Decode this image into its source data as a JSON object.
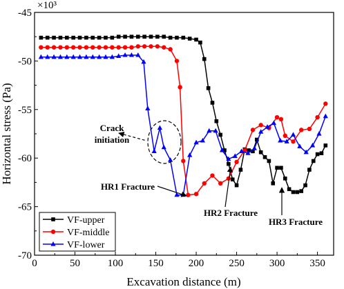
{
  "chart_data": {
    "type": "line",
    "title": "",
    "xlabel": "Excavation distance (m)",
    "ylabel": "Horizontal stress (Pa)",
    "y_multiplier_label": "×10³",
    "xlim": [
      0,
      370
    ],
    "ylim": [
      -70,
      -45
    ],
    "x_ticks": [
      0,
      50,
      100,
      150,
      200,
      250,
      300,
      350
    ],
    "y_ticks": [
      -45,
      -50,
      -55,
      -60,
      -65,
      -70
    ],
    "grid": false,
    "legend_placement": "bottom-left",
    "series": [
      {
        "name": "VF-upper",
        "color": "#000000",
        "marker": "square",
        "x": [
          8,
          16,
          24,
          32,
          40,
          48,
          56,
          64,
          72,
          80,
          88,
          96,
          104,
          112,
          120,
          128,
          136,
          144,
          152,
          160,
          168,
          176,
          184,
          192,
          200,
          205,
          210,
          215,
          220,
          225,
          230,
          235,
          240,
          245,
          250,
          255,
          260,
          265,
          270,
          275,
          280,
          285,
          290,
          295,
          300,
          305,
          310,
          315,
          320,
          325,
          330,
          335,
          340,
          345,
          350,
          355,
          360
        ],
        "values": [
          -47.6,
          -47.6,
          -47.6,
          -47.6,
          -47.6,
          -47.6,
          -47.6,
          -47.6,
          -47.6,
          -47.6,
          -47.6,
          -47.6,
          -47.5,
          -47.5,
          -47.5,
          -47.5,
          -47.5,
          -47.5,
          -47.5,
          -47.5,
          -47.6,
          -47.6,
          -47.6,
          -47.7,
          -47.8,
          -48.1,
          -49.8,
          -52.8,
          -54.3,
          -56.2,
          -57.6,
          -59.2,
          -60.6,
          -62.2,
          -62.8,
          -61.2,
          -59.1,
          -59.2,
          -59.3,
          -58.1,
          -59.4,
          -59.9,
          -60.3,
          -62.6,
          -61.0,
          -61.0,
          -62.1,
          -63.2,
          -63.5,
          -63.5,
          -63.4,
          -62.8,
          -61.2,
          -60.3,
          -59.6,
          -59.5,
          -58.7
        ]
      },
      {
        "name": "VF-middle",
        "color": "#ff0000",
        "marker": "circle",
        "x": [
          8,
          16,
          24,
          32,
          40,
          48,
          56,
          64,
          72,
          80,
          88,
          96,
          104,
          112,
          120,
          128,
          136,
          144,
          152,
          160,
          168,
          176,
          180,
          184,
          190,
          200,
          210,
          220,
          230,
          240,
          250,
          260,
          270,
          280,
          290,
          300,
          305,
          310,
          320,
          330,
          340,
          350,
          360
        ],
        "values": [
          -48.6,
          -48.6,
          -48.6,
          -48.6,
          -48.6,
          -48.6,
          -48.6,
          -48.6,
          -48.6,
          -48.6,
          -48.6,
          -48.6,
          -48.6,
          -48.6,
          -48.6,
          -48.5,
          -48.5,
          -48.5,
          -48.5,
          -48.6,
          -48.8,
          -50.0,
          -52.7,
          -60.3,
          -63.8,
          -63.7,
          -62.6,
          -61.8,
          -62.6,
          -62.1,
          -60.4,
          -59.2,
          -57.1,
          -56.6,
          -56.9,
          -55.8,
          -56.0,
          -57.7,
          -58.3,
          -57.1,
          -57.0,
          -55.8,
          -54.4
        ]
      },
      {
        "name": "VF-lower",
        "color": "#0000ff",
        "marker": "triangle",
        "x": [
          8,
          16,
          24,
          32,
          40,
          48,
          56,
          64,
          72,
          80,
          88,
          96,
          104,
          112,
          120,
          128,
          135,
          140,
          148,
          155,
          160,
          168,
          176,
          184,
          192,
          200,
          208,
          216,
          224,
          232,
          240,
          248,
          256,
          264,
          272,
          280,
          288,
          296,
          304,
          312,
          320,
          328,
          336,
          344,
          352,
          360
        ],
        "values": [
          -49.6,
          -49.6,
          -49.6,
          -49.6,
          -49.6,
          -49.6,
          -49.6,
          -49.6,
          -49.6,
          -49.6,
          -49.6,
          -49.6,
          -49.5,
          -49.4,
          -49.4,
          -49.4,
          -50.1,
          -54.9,
          -59.3,
          -56.9,
          -58.9,
          -60.2,
          -63.8,
          -63.8,
          -59.7,
          -58.4,
          -58.2,
          -57.2,
          -57.2,
          -59.2,
          -60.1,
          -59.8,
          -59.3,
          -59.5,
          -59.0,
          -57.3,
          -56.8,
          -56.4,
          -58.2,
          -58.3,
          -57.6,
          -58.8,
          -59.4,
          -58.7,
          -57.5,
          -55.7
        ]
      }
    ],
    "annotations": [
      {
        "id": "crack",
        "line1": "Crack",
        "line2": "initiation"
      },
      {
        "id": "hr1",
        "text": "HR1 Fracture"
      },
      {
        "id": "hr2",
        "text": "HR2 Fracture"
      },
      {
        "id": "hr3",
        "text": "HR3 Fracture"
      }
    ]
  }
}
